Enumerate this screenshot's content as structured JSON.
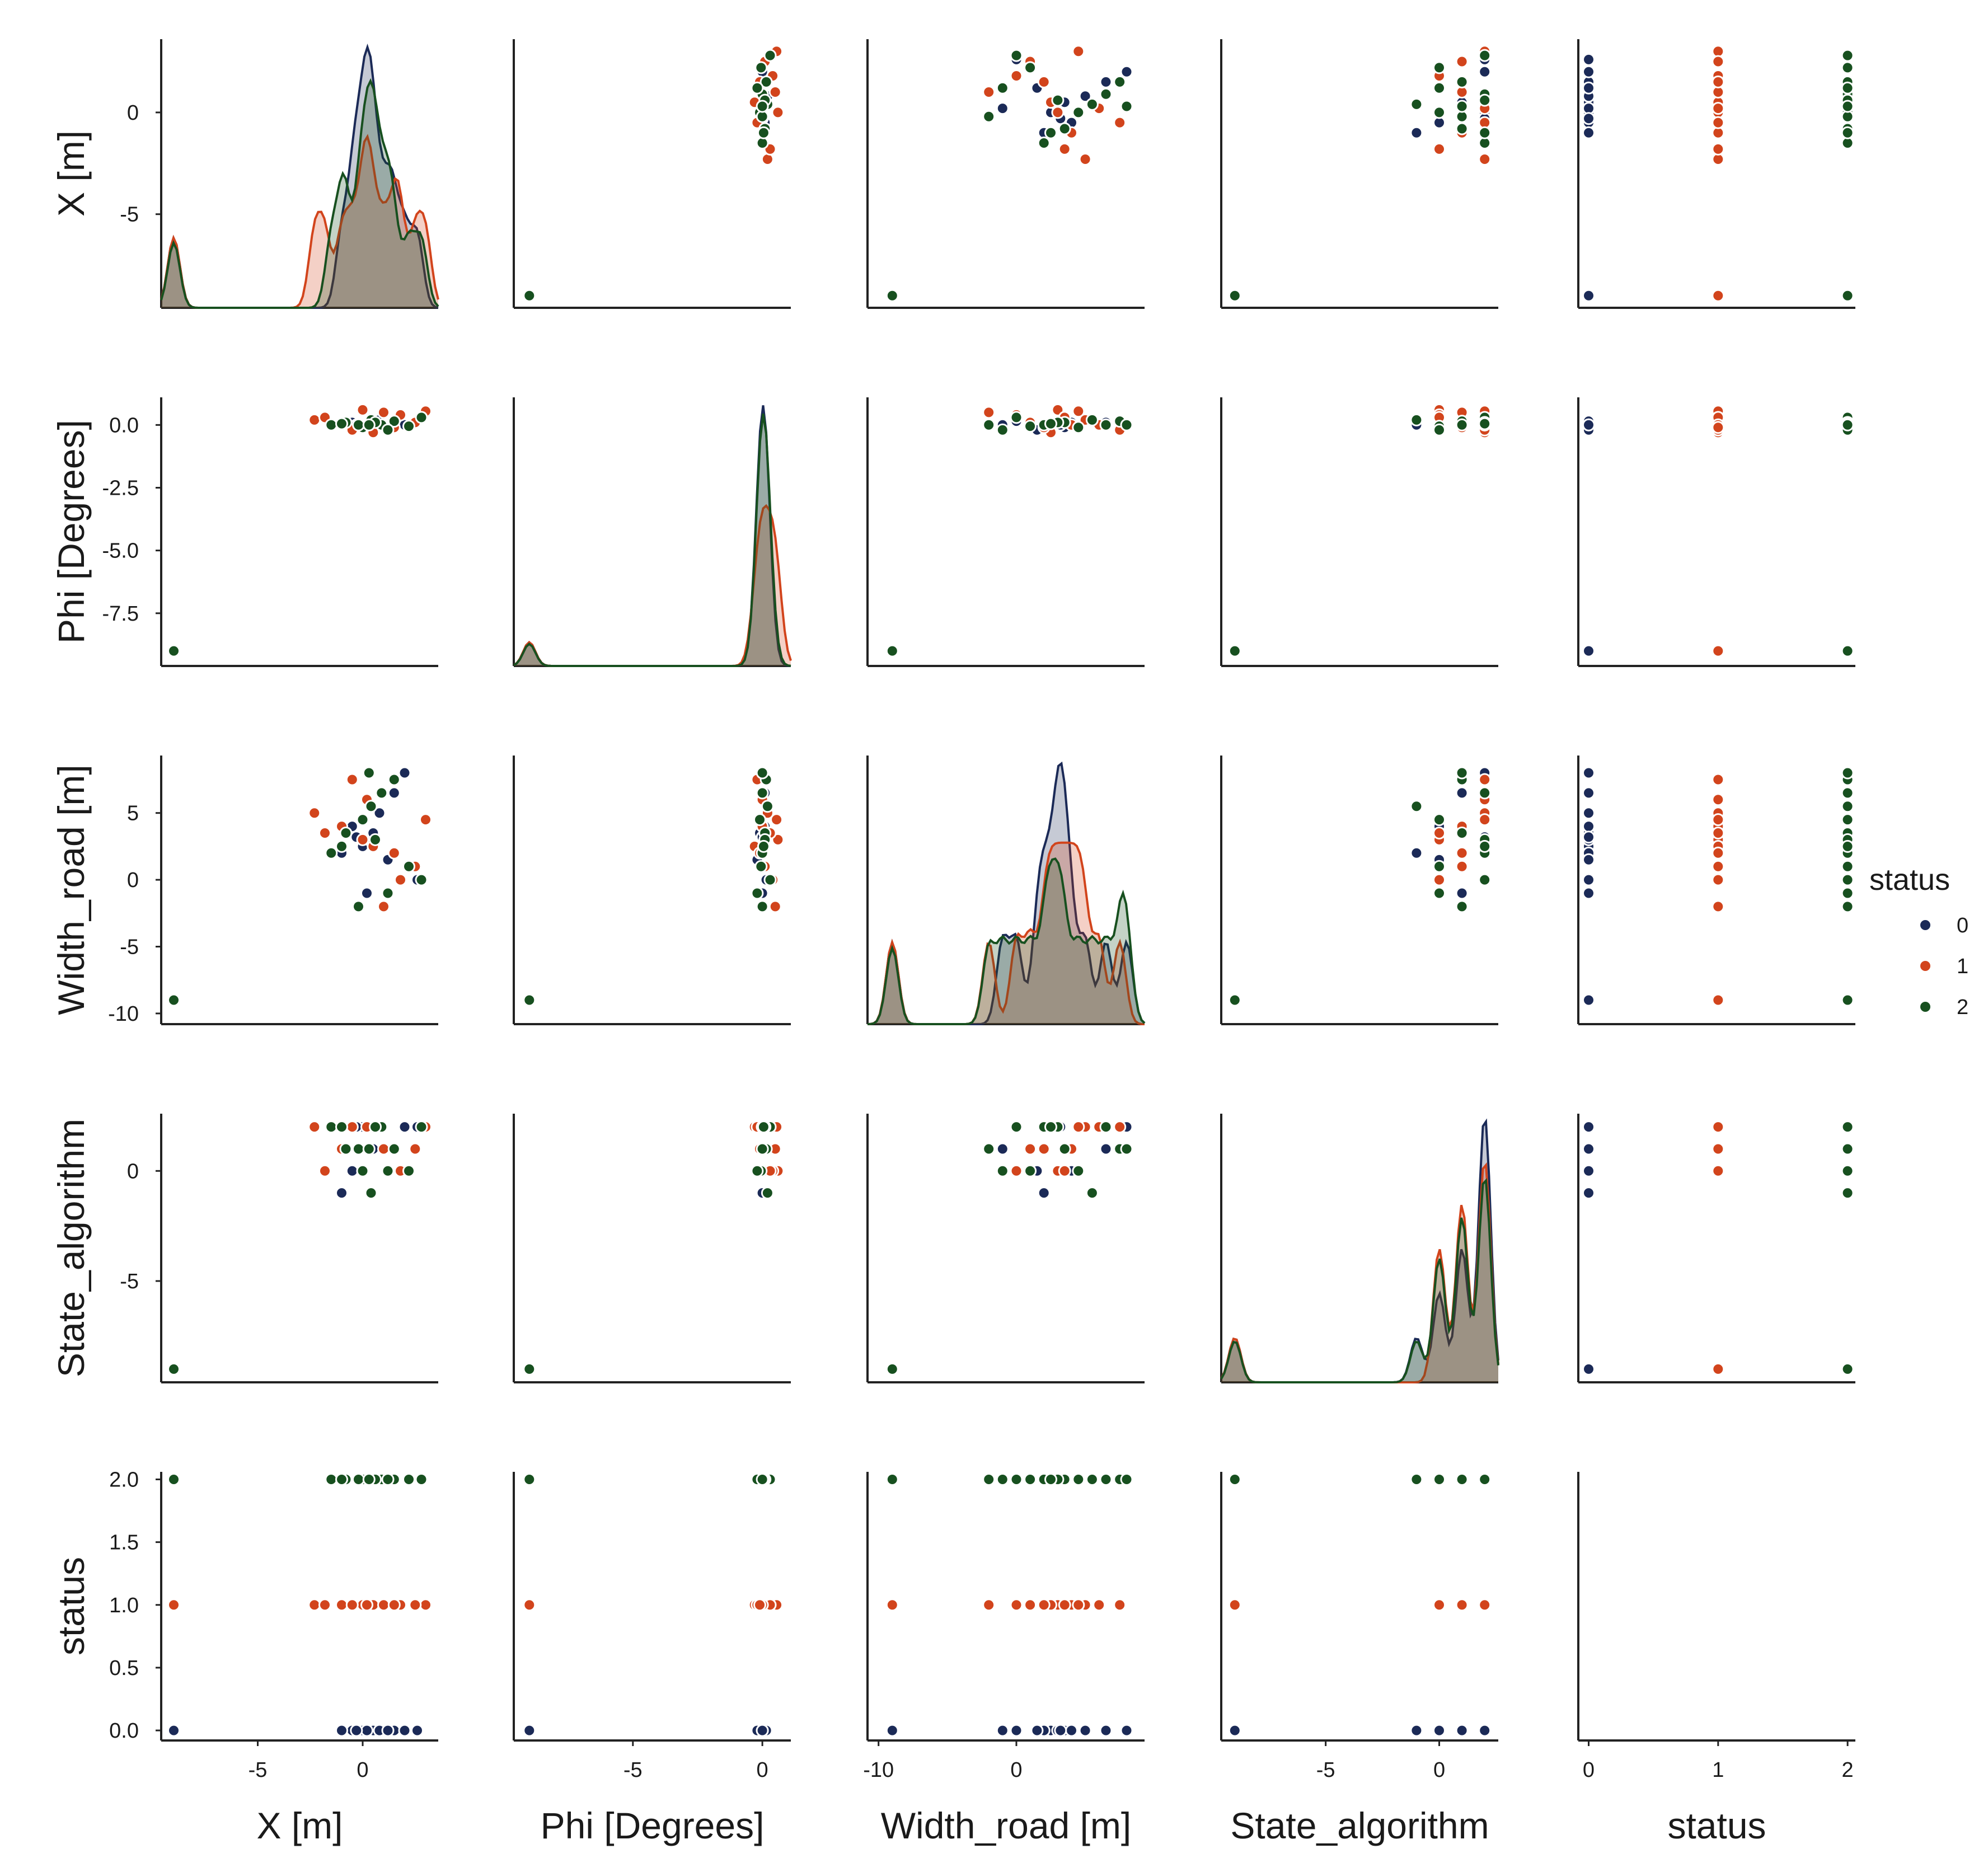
{
  "chart_data": {
    "type": "scatter",
    "title": "",
    "variables": [
      "X [m]",
      "Phi [Degrees]",
      "Width_road [m]",
      "State_algorithm",
      "status"
    ],
    "x_ticks": [
      {
        "values": [
          -5,
          0
        ],
        "labels": [
          "-5",
          "0"
        ]
      },
      {
        "values": [
          -5,
          0
        ],
        "labels": [
          "-5",
          "0"
        ]
      },
      {
        "values": [
          -10,
          0
        ],
        "labels": [
          "-10",
          "0"
        ]
      },
      {
        "values": [
          -5,
          0
        ],
        "labels": [
          "-5",
          "0"
        ]
      },
      {
        "values": [
          0,
          1,
          2
        ],
        "labels": [
          "0",
          "1",
          "2"
        ]
      }
    ],
    "y_ticks": [
      {
        "values": [
          -5,
          0
        ],
        "labels": [
          "-5",
          "0"
        ]
      },
      {
        "values": [
          -7.5,
          -5.0,
          -2.5,
          0.0
        ],
        "labels": [
          "-7.5",
          "-5.0",
          "-2.5",
          "0.0"
        ]
      },
      {
        "values": [
          -10,
          -5,
          0,
          5
        ],
        "labels": [
          "-10",
          "-5",
          "0",
          "5"
        ]
      },
      {
        "values": [
          -5,
          0
        ],
        "labels": [
          "-5",
          "0"
        ]
      },
      {
        "values": [
          0.0,
          0.5,
          1.0,
          1.5,
          2.0
        ],
        "labels": [
          "0.0",
          "0.5",
          "1.0",
          "1.5",
          "2.0"
        ]
      }
    ],
    "ranges": [
      [
        -9.6,
        3.6
      ],
      [
        -9.6,
        1.1
      ],
      [
        -10.8,
        9.3
      ],
      [
        -9.6,
        2.6
      ],
      [
        -0.08,
        2.06
      ]
    ],
    "outlier": {
      "X [m]": -9,
      "Phi [Degrees]": -9,
      "Width_road [m]": -9,
      "State_algorithm": -9
    },
    "legend": {
      "title": "status",
      "position": "right",
      "entries": [
        {
          "label": "0",
          "color": "#1b2a57"
        },
        {
          "label": "1",
          "color": "#d2441c"
        },
        {
          "label": "2",
          "color": "#17501f"
        }
      ]
    },
    "series": [
      {
        "name": "0",
        "X": [
          0.0,
          0.3,
          0.5,
          -0.5,
          -1.0,
          0.8,
          1.5,
          2.0,
          1.2,
          2.6,
          0.2,
          -0.3,
          -9
        ],
        "Phi": [
          0.0,
          0.05,
          -0.1,
          0.1,
          0.0,
          0.2,
          0.1,
          0.0,
          -0.2,
          0.15,
          0.0,
          0.0,
          -9
        ],
        "Width_road": [
          2.5,
          3.0,
          3.5,
          4.0,
          2.0,
          5.0,
          6.5,
          8.0,
          1.5,
          0.0,
          -1.0,
          3.2,
          -9
        ],
        "State_algorithm": [
          2,
          2,
          1,
          0,
          -1,
          2,
          1,
          2,
          0,
          2,
          1,
          2,
          -9
        ]
      },
      {
        "name": "1",
        "X": [
          -2.3,
          -1.0,
          0.0,
          0.5,
          1.0,
          1.8,
          3.0,
          -0.5,
          2.5,
          -1.8,
          0.2,
          1.5,
          -9
        ],
        "Phi": [
          0.2,
          0.0,
          0.6,
          -0.3,
          0.5,
          0.4,
          0.55,
          -0.2,
          0.1,
          0.3,
          0.0,
          -0.1,
          -9
        ],
        "Width_road": [
          5.0,
          4.0,
          3.0,
          2.5,
          -2.0,
          0.0,
          4.5,
          7.5,
          1.0,
          3.5,
          6.0,
          2.0,
          -9
        ],
        "State_algorithm": [
          2,
          1,
          0,
          2,
          1,
          0,
          2,
          2,
          1,
          0,
          2,
          1,
          -9
        ]
      },
      {
        "name": "2",
        "X": [
          -1.5,
          -0.8,
          0.0,
          0.4,
          0.9,
          1.5,
          2.2,
          2.8,
          -0.2,
          0.6,
          1.2,
          -1.0,
          0.3,
          -9
        ],
        "Phi": [
          0.0,
          0.1,
          -0.1,
          0.2,
          0.0,
          0.15,
          -0.05,
          0.3,
          0.0,
          0.1,
          -0.2,
          0.05,
          0.0,
          -9
        ],
        "Width_road": [
          2.0,
          3.5,
          4.5,
          5.5,
          6.5,
          7.5,
          1.0,
          0.0,
          -2.0,
          3.0,
          -1.0,
          2.5,
          8.0,
          -9
        ],
        "State_algorithm": [
          2,
          1,
          0,
          -1,
          2,
          1,
          0,
          2,
          1,
          2,
          0,
          2,
          1,
          -9
        ]
      }
    ]
  }
}
